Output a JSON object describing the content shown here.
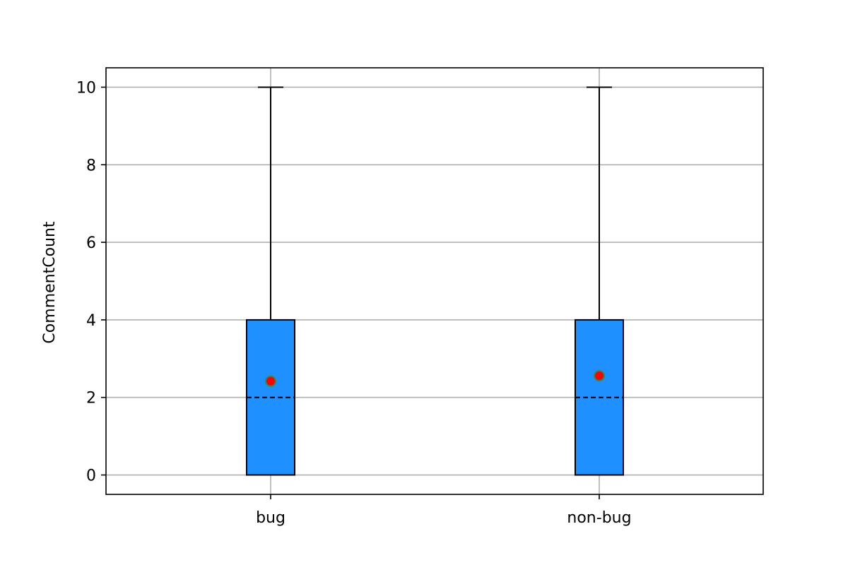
{
  "chart_data": {
    "type": "boxplot",
    "title": "",
    "xlabel": "",
    "ylabel": "CommentCount",
    "ylim": [
      -0.5,
      10.5
    ],
    "yticks": [
      0,
      2,
      4,
      6,
      8,
      10
    ],
    "grid": true,
    "legend": "none",
    "categories": [
      "bug",
      "non-bug"
    ],
    "boxes": [
      {
        "name": "bug",
        "whisker_low": 0,
        "q1": 0,
        "median": 2,
        "q3": 4,
        "whisker_high": 10,
        "mean": 2.42
      },
      {
        "name": "non-bug",
        "whisker_low": 0,
        "q1": 0,
        "median": 2,
        "q3": 4,
        "whisker_high": 10,
        "mean": 2.56
      }
    ],
    "colors": {
      "box_fill": "#1e90ff",
      "box_edge": "#000000",
      "median_line": "#000000",
      "mean_marker": "#ff0000",
      "mean_marker_edge": "#2e8b57",
      "grid": "#b0b0b0"
    }
  }
}
